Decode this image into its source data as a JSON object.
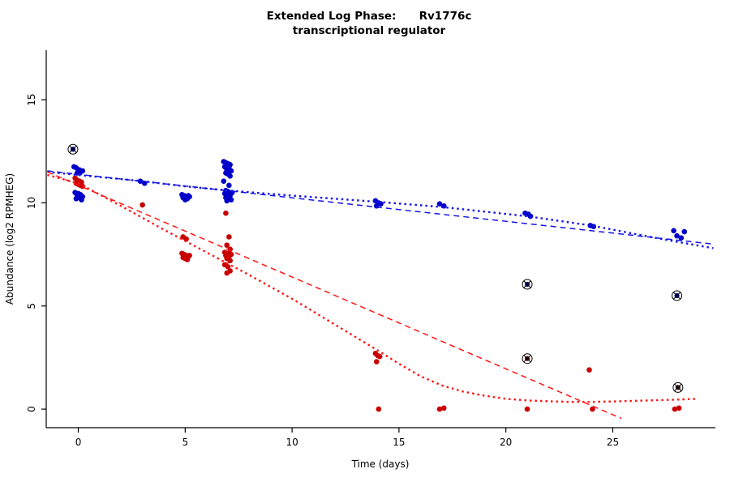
{
  "chart_data": {
    "type": "scatter",
    "title": "Extended Log Phase: Rv1776c transcriptional regulator",
    "title_line1": "Extended Log Phase:      Rv1776c",
    "title_line2": "transcriptional regulator",
    "xlabel": "Time  (days)",
    "ylabel": "Abundance  (log2 RPMHEG)",
    "xlim": [
      -1.5,
      29.8
    ],
    "ylim": [
      -0.9,
      17.4
    ],
    "xticks": [
      0,
      5,
      10,
      15,
      20,
      25
    ],
    "yticks": [
      0,
      5,
      10,
      15
    ],
    "grid": false,
    "legend": "none",
    "series": [
      {
        "name": "blue",
        "color": "#0000C8",
        "points": [
          [
            -0.2,
            11.75
          ],
          [
            -0.1,
            11.7
          ],
          [
            0.05,
            11.6
          ],
          [
            0.1,
            11.5
          ],
          [
            -0.05,
            11.45
          ],
          [
            0.2,
            11.55
          ],
          [
            -0.15,
            10.5
          ],
          [
            0.0,
            10.45
          ],
          [
            0.1,
            10.4
          ],
          [
            -0.05,
            10.35
          ],
          [
            0.2,
            10.3
          ],
          [
            0.05,
            10.25
          ],
          [
            -0.1,
            10.2
          ],
          [
            0.15,
            10.15
          ],
          [
            2.9,
            11.05
          ],
          [
            3.1,
            10.95
          ],
          [
            4.85,
            10.4
          ],
          [
            4.95,
            10.35
          ],
          [
            5.05,
            10.3
          ],
          [
            5.15,
            10.35
          ],
          [
            4.9,
            10.25
          ],
          [
            5.1,
            10.2
          ],
          [
            5.0,
            10.15
          ],
          [
            5.2,
            10.3
          ],
          [
            6.8,
            12.0
          ],
          [
            6.9,
            11.95
          ],
          [
            7.0,
            11.9
          ],
          [
            7.1,
            11.85
          ],
          [
            6.85,
            11.75
          ],
          [
            7.05,
            11.7
          ],
          [
            6.95,
            11.6
          ],
          [
            7.15,
            11.55
          ],
          [
            6.9,
            11.45
          ],
          [
            7.0,
            11.4
          ],
          [
            7.1,
            11.3
          ],
          [
            6.8,
            11.05
          ],
          [
            7.05,
            10.85
          ],
          [
            6.9,
            10.6
          ],
          [
            7.0,
            10.55
          ],
          [
            7.2,
            10.5
          ],
          [
            6.85,
            10.45
          ],
          [
            6.95,
            10.4
          ],
          [
            7.1,
            10.35
          ],
          [
            7.0,
            10.3
          ],
          [
            6.9,
            10.25
          ],
          [
            7.05,
            10.2
          ],
          [
            7.15,
            10.15
          ],
          [
            6.95,
            10.1
          ],
          [
            13.9,
            10.1
          ],
          [
            14.05,
            10.0
          ],
          [
            14.15,
            9.95
          ],
          [
            13.95,
            9.85
          ],
          [
            16.9,
            9.95
          ],
          [
            17.1,
            9.85
          ],
          [
            20.9,
            9.5
          ],
          [
            21.05,
            9.45
          ],
          [
            21.15,
            9.35
          ],
          [
            23.95,
            8.9
          ],
          [
            24.1,
            8.85
          ],
          [
            27.85,
            8.65
          ],
          [
            28.0,
            8.4
          ],
          [
            28.2,
            8.3
          ],
          [
            28.35,
            8.6
          ]
        ]
      },
      {
        "name": "red",
        "color": "#C80000",
        "points": [
          [
            -0.15,
            11.2
          ],
          [
            -0.05,
            11.1
          ],
          [
            0.05,
            11.05
          ],
          [
            0.15,
            11.0
          ],
          [
            -0.1,
            10.95
          ],
          [
            0.0,
            10.9
          ],
          [
            0.1,
            10.85
          ],
          [
            0.2,
            10.8
          ],
          [
            3.0,
            9.9
          ],
          [
            4.9,
            8.35
          ],
          [
            5.05,
            8.25
          ],
          [
            4.85,
            7.55
          ],
          [
            4.95,
            7.5
          ],
          [
            5.05,
            7.45
          ],
          [
            5.15,
            7.4
          ],
          [
            4.9,
            7.35
          ],
          [
            5.0,
            7.3
          ],
          [
            5.1,
            7.25
          ],
          [
            5.2,
            7.45
          ],
          [
            6.9,
            9.5
          ],
          [
            7.05,
            8.35
          ],
          [
            6.95,
            7.95
          ],
          [
            7.1,
            7.75
          ],
          [
            6.85,
            7.6
          ],
          [
            7.0,
            7.55
          ],
          [
            7.15,
            7.5
          ],
          [
            6.9,
            7.45
          ],
          [
            7.05,
            7.4
          ],
          [
            6.95,
            7.3
          ],
          [
            7.1,
            7.2
          ],
          [
            6.85,
            7.0
          ],
          [
            7.0,
            6.9
          ],
          [
            7.1,
            6.7
          ],
          [
            6.95,
            6.6
          ],
          [
            13.9,
            2.7
          ],
          [
            14.0,
            2.6
          ],
          [
            14.1,
            2.55
          ],
          [
            13.95,
            2.3
          ],
          [
            14.05,
            0.0
          ],
          [
            16.9,
            0.0
          ],
          [
            17.1,
            0.05
          ],
          [
            21.0,
            0.0
          ],
          [
            23.9,
            1.9
          ],
          [
            24.05,
            0.0
          ],
          [
            27.9,
            0.0
          ],
          [
            28.1,
            0.05
          ]
        ]
      }
    ],
    "outliers": [
      {
        "x": -0.25,
        "y": 12.6,
        "color": "#00008B"
      },
      {
        "x": 21.0,
        "y": 6.05,
        "color": "#00008B"
      },
      {
        "x": 28.0,
        "y": 5.5,
        "color": "#00008B"
      },
      {
        "x": 21.0,
        "y": 2.45,
        "color": "#550000"
      },
      {
        "x": 28.05,
        "y": 1.05,
        "color": "#3c1414"
      }
    ],
    "lines": [
      {
        "name": "blue-dashed-fit",
        "style": "dashed",
        "color": "#1414E6",
        "points": [
          [
            -1.45,
            11.55
          ],
          [
            29.7,
            8.0
          ]
        ]
      },
      {
        "name": "blue-dotted-smooth",
        "style": "dotted",
        "color": "#1414E6",
        "points": [
          [
            -1.45,
            11.5
          ],
          [
            0,
            11.35
          ],
          [
            3,
            11.05
          ],
          [
            5,
            10.8
          ],
          [
            7,
            10.6
          ],
          [
            10,
            10.35
          ],
          [
            14,
            10.05
          ],
          [
            17,
            9.8
          ],
          [
            21,
            9.35
          ],
          [
            24,
            8.9
          ],
          [
            27,
            8.3
          ],
          [
            29.7,
            7.8
          ]
        ]
      },
      {
        "name": "red-dashed-fit",
        "style": "dashed",
        "color": "#FF1414",
        "points": [
          [
            -1.45,
            11.5
          ],
          [
            25.4,
            -0.45
          ]
        ]
      },
      {
        "name": "red-dotted-smooth",
        "style": "dotted",
        "color": "#FF1414",
        "points": [
          [
            -1.45,
            11.35
          ],
          [
            0,
            10.95
          ],
          [
            2,
            9.85
          ],
          [
            4,
            8.7
          ],
          [
            6,
            7.6
          ],
          [
            8,
            6.5
          ],
          [
            10,
            5.35
          ],
          [
            12,
            4.1
          ],
          [
            14,
            2.85
          ],
          [
            15,
            2.2
          ],
          [
            16,
            1.6
          ],
          [
            17,
            1.15
          ],
          [
            18,
            0.85
          ],
          [
            19,
            0.65
          ],
          [
            20,
            0.5
          ],
          [
            21,
            0.42
          ],
          [
            22,
            0.38
          ],
          [
            23,
            0.35
          ],
          [
            24,
            0.35
          ],
          [
            25,
            0.37
          ],
          [
            26,
            0.4
          ],
          [
            27,
            0.43
          ],
          [
            28,
            0.46
          ],
          [
            29,
            0.5
          ]
        ]
      }
    ]
  }
}
